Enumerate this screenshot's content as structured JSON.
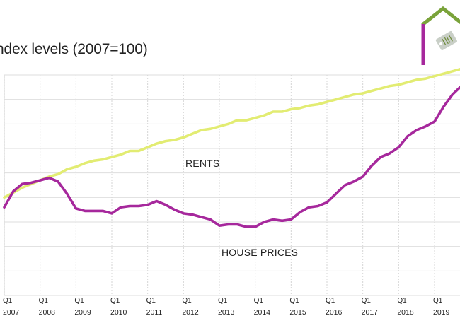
{
  "chart_data": {
    "type": "line",
    "title": "ndex levels (2007=100)",
    "xlabel": "",
    "ylabel": "",
    "x_ticks": [
      {
        "q": "Q1",
        "year": "2007"
      },
      {
        "q": "Q1",
        "year": "2008"
      },
      {
        "q": "Q1",
        "year": "2009"
      },
      {
        "q": "Q1",
        "year": "2010"
      },
      {
        "q": "Q1",
        "year": "2011"
      },
      {
        "q": "Q1",
        "year": "2012"
      },
      {
        "q": "Q1",
        "year": "2013"
      },
      {
        "q": "Q1",
        "year": "2014"
      },
      {
        "q": "Q1",
        "year": "2015"
      },
      {
        "q": "Q1",
        "year": "2016"
      },
      {
        "q": "Q1",
        "year": "2017"
      },
      {
        "q": "Q1",
        "year": "2018"
      },
      {
        "q": "Q1",
        "year": "2019"
      }
    ],
    "xlim": [
      2007.0,
      2019.75
    ],
    "ylim": [
      92,
      110
    ],
    "grid": {
      "vertical": true,
      "horizontal": true
    },
    "annotations": [
      {
        "text": "RENTS",
        "series": "rents"
      },
      {
        "text": "HOUSE PRICES",
        "series": "house_prices"
      }
    ],
    "series": [
      {
        "key": "rents",
        "color": "#e2ec72",
        "x": [
          2007.0,
          2007.25,
          2007.5,
          2007.75,
          2008.0,
          2008.25,
          2008.5,
          2008.75,
          2009.0,
          2009.25,
          2009.5,
          2009.75,
          2010.0,
          2010.25,
          2010.5,
          2010.75,
          2011.0,
          2011.25,
          2011.5,
          2011.75,
          2012.0,
          2012.25,
          2012.5,
          2012.75,
          2013.0,
          2013.25,
          2013.5,
          2013.75,
          2014.0,
          2014.25,
          2014.5,
          2014.75,
          2015.0,
          2015.25,
          2015.5,
          2015.75,
          2016.0,
          2016.25,
          2016.5,
          2016.75,
          2017.0,
          2017.25,
          2017.5,
          2017.75,
          2018.0,
          2018.25,
          2018.5,
          2018.75,
          2019.0,
          2019.25,
          2019.5,
          2019.75
        ],
        "values": [
          100.0,
          100.4,
          100.8,
          101.1,
          101.4,
          101.7,
          101.9,
          102.3,
          102.5,
          102.8,
          103.0,
          103.1,
          103.3,
          103.5,
          103.8,
          103.8,
          104.1,
          104.4,
          104.6,
          104.7,
          104.9,
          105.2,
          105.5,
          105.6,
          105.8,
          106.0,
          106.3,
          106.3,
          106.5,
          106.7,
          107.0,
          107.0,
          107.2,
          107.3,
          107.5,
          107.6,
          107.8,
          108.0,
          108.2,
          108.4,
          108.5,
          108.7,
          108.9,
          109.1,
          109.2,
          109.4,
          109.6,
          109.7,
          109.9,
          110.1,
          110.3,
          110.5
        ]
      },
      {
        "key": "house_prices",
        "color": "#a6289c",
        "x": [
          2007.0,
          2007.25,
          2007.5,
          2007.75,
          2008.0,
          2008.25,
          2008.5,
          2008.75,
          2009.0,
          2009.25,
          2009.5,
          2009.75,
          2010.0,
          2010.25,
          2010.5,
          2010.75,
          2011.0,
          2011.25,
          2011.5,
          2011.75,
          2012.0,
          2012.25,
          2012.5,
          2012.75,
          2013.0,
          2013.25,
          2013.5,
          2013.75,
          2014.0,
          2014.25,
          2014.5,
          2014.75,
          2015.0,
          2015.25,
          2015.5,
          2015.75,
          2016.0,
          2016.25,
          2016.5,
          2016.75,
          2017.0,
          2017.25,
          2017.5,
          2017.75,
          2018.0,
          2018.25,
          2018.5,
          2018.75,
          2019.0,
          2019.25,
          2019.5,
          2019.75
        ],
        "values": [
          99.2,
          100.5,
          101.1,
          101.2,
          101.4,
          101.6,
          101.3,
          100.3,
          99.1,
          98.9,
          98.9,
          98.9,
          98.7,
          99.2,
          99.3,
          99.3,
          99.4,
          99.7,
          99.4,
          99.0,
          98.7,
          98.6,
          98.4,
          98.2,
          97.7,
          97.8,
          97.8,
          97.6,
          97.6,
          98.0,
          98.2,
          98.1,
          98.2,
          98.8,
          99.2,
          99.3,
          99.6,
          100.3,
          101.0,
          101.3,
          101.7,
          102.6,
          103.3,
          103.6,
          104.1,
          105.0,
          105.5,
          105.8,
          106.2,
          107.4,
          108.4,
          109.1
        ]
      }
    ]
  }
}
